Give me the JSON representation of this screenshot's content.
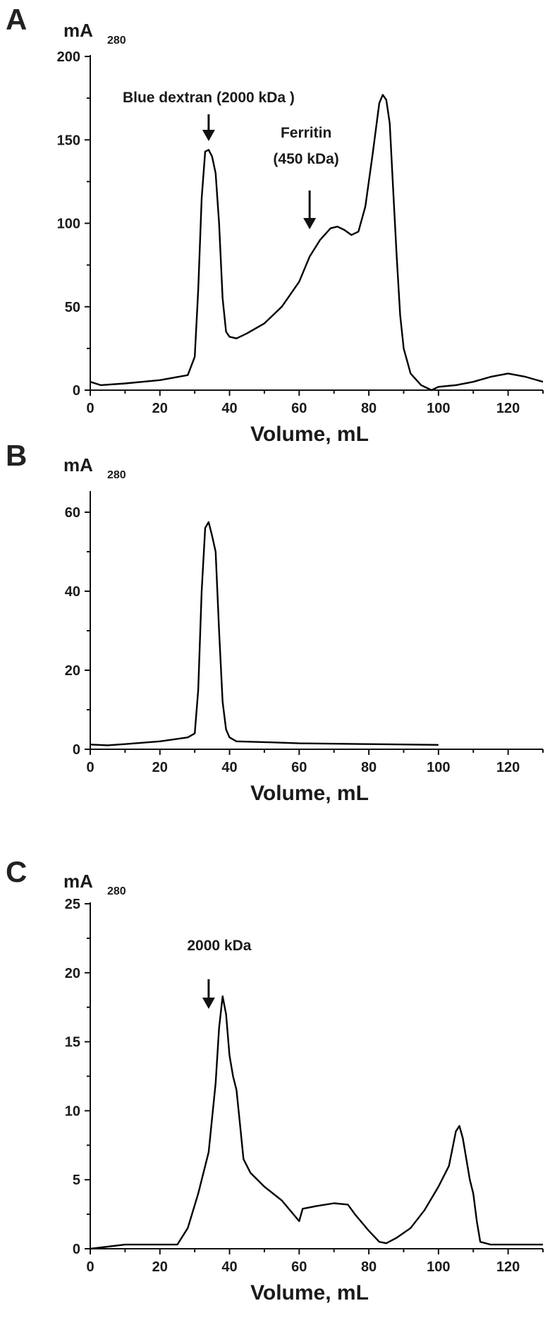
{
  "panels": [
    {
      "letter": "A",
      "ylabel": "mA",
      "ylabel_sub": "280",
      "xlabel": "Volume, mL",
      "annotations": [
        {
          "text": [
            "Blue dextran (2000 kDa )"
          ],
          "x": 34
        },
        {
          "text": [
            "Ferritin",
            "(450 kDa)"
          ],
          "x": 63
        }
      ]
    },
    {
      "letter": "B",
      "ylabel": "mA",
      "ylabel_sub": "280",
      "xlabel": "Volume, mL",
      "annotations": []
    },
    {
      "letter": "C",
      "ylabel": "mA",
      "ylabel_sub": "280",
      "xlabel": "Volume, mL",
      "annotations": [
        {
          "text": [
            "2000 kDa"
          ],
          "x": 34
        }
      ]
    }
  ],
  "chart_data": [
    {
      "type": "line",
      "xlim": [
        0,
        130
      ],
      "ylim": [
        0,
        200
      ],
      "xticks": [
        0,
        20,
        40,
        60,
        80,
        100,
        120
      ],
      "yticks": [
        0,
        50,
        100,
        150,
        200
      ],
      "series": [
        {
          "values": [
            [
              0,
              5
            ],
            [
              3,
              3
            ],
            [
              10,
              4
            ],
            [
              20,
              6
            ],
            [
              28,
              9
            ],
            [
              30,
              20
            ],
            [
              31,
              60
            ],
            [
              32,
              115
            ],
            [
              33,
              143
            ],
            [
              34,
              144
            ],
            [
              35,
              140
            ],
            [
              36,
              130
            ],
            [
              37,
              100
            ],
            [
              38,
              55
            ],
            [
              39,
              35
            ],
            [
              40,
              32
            ],
            [
              42,
              31
            ],
            [
              45,
              34
            ],
            [
              50,
              40
            ],
            [
              55,
              50
            ],
            [
              60,
              65
            ],
            [
              63,
              80
            ],
            [
              66,
              90
            ],
            [
              69,
              97
            ],
            [
              71,
              98
            ],
            [
              73,
              96
            ],
            [
              75,
              93
            ],
            [
              77,
              95
            ],
            [
              79,
              110
            ],
            [
              81,
              140
            ],
            [
              83,
              172
            ],
            [
              84,
              177
            ],
            [
              85,
              174
            ],
            [
              86,
              160
            ],
            [
              87,
              120
            ],
            [
              88,
              80
            ],
            [
              89,
              45
            ],
            [
              90,
              25
            ],
            [
              92,
              10
            ],
            [
              95,
              3
            ],
            [
              98,
              0
            ],
            [
              100,
              2
            ],
            [
              105,
              3
            ],
            [
              110,
              5
            ],
            [
              115,
              8
            ],
            [
              120,
              10
            ],
            [
              125,
              8
            ],
            [
              130,
              5
            ]
          ]
        }
      ]
    },
    {
      "type": "line",
      "xlim": [
        0,
        130
      ],
      "ylim": [
        0,
        65
      ],
      "xticks": [
        0,
        20,
        40,
        60,
        80,
        100,
        120
      ],
      "yticks": [
        0,
        20,
        40,
        60
      ],
      "series": [
        {
          "values": [
            [
              0,
              1.2
            ],
            [
              5,
              1
            ],
            [
              10,
              1.3
            ],
            [
              20,
              2
            ],
            [
              28,
              3
            ],
            [
              30,
              4
            ],
            [
              31,
              15
            ],
            [
              32,
              40
            ],
            [
              33,
              56
            ],
            [
              34,
              57.5
            ],
            [
              35,
              54
            ],
            [
              36,
              50
            ],
            [
              37,
              30
            ],
            [
              38,
              12
            ],
            [
              39,
              5
            ],
            [
              40,
              3
            ],
            [
              42,
              2
            ],
            [
              50,
              1.8
            ],
            [
              60,
              1.5
            ],
            [
              80,
              1.3
            ],
            [
              100,
              1.1
            ]
          ]
        }
      ]
    },
    {
      "type": "line",
      "xlim": [
        0,
        130
      ],
      "ylim": [
        0,
        25
      ],
      "xticks": [
        0,
        20,
        40,
        60,
        80,
        100,
        120
      ],
      "yticks": [
        0,
        5,
        10,
        15,
        20,
        25
      ],
      "series": [
        {
          "values": [
            [
              0,
              0
            ],
            [
              10,
              0.3
            ],
            [
              20,
              0.3
            ],
            [
              25,
              0.3
            ],
            [
              28,
              1.5
            ],
            [
              31,
              4
            ],
            [
              34,
              7
            ],
            [
              36,
              12
            ],
            [
              37,
              16
            ],
            [
              38,
              18.3
            ],
            [
              39,
              17
            ],
            [
              40,
              14
            ],
            [
              41,
              12.5
            ],
            [
              42,
              11.5
            ],
            [
              43,
              9
            ],
            [
              44,
              6.5
            ],
            [
              46,
              5.5
            ],
            [
              50,
              4.5
            ],
            [
              55,
              3.5
            ],
            [
              60,
              2
            ],
            [
              61,
              2.9
            ],
            [
              65,
              3.1
            ],
            [
              70,
              3.3
            ],
            [
              74,
              3.2
            ],
            [
              76,
              2.5
            ],
            [
              80,
              1.3
            ],
            [
              83,
              0.5
            ],
            [
              85,
              0.4
            ],
            [
              88,
              0.8
            ],
            [
              92,
              1.5
            ],
            [
              96,
              2.8
            ],
            [
              100,
              4.5
            ],
            [
              103,
              6
            ],
            [
              105,
              8.5
            ],
            [
              106,
              8.9
            ],
            [
              107,
              8
            ],
            [
              109,
              5
            ],
            [
              110,
              4
            ],
            [
              111,
              2
            ],
            [
              112,
              0.5
            ],
            [
              115,
              0.3
            ],
            [
              130,
              0.3
            ]
          ]
        }
      ]
    }
  ]
}
